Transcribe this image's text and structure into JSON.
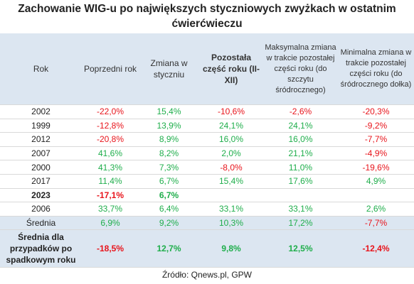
{
  "title": "Zachowanie WIG-u po największych styczniowych zwyżkach w ostatnim ćwierćwieczu",
  "table": {
    "header": [
      "Rok",
      "Poprzedni rok",
      "Zmiana w styczniu",
      "Pozostała część roku (II-XII)",
      "Maksymalna zmiana w trakcie pozostałej części roku (do szczytu śródrocznego)",
      "Minimalna zmiana w trakcie pozostałej części roku (do śródrocznego dołka)"
    ],
    "header_bold": [
      false,
      false,
      false,
      true,
      false,
      false
    ],
    "rows": [
      {
        "cells": [
          "2002",
          "-22,0%",
          "15,4%",
          "-10,6%",
          "-2,6%",
          "-20,3%"
        ],
        "bold": false
      },
      {
        "cells": [
          "1999",
          "-12,8%",
          "13,9%",
          "24,1%",
          "24,1%",
          "-9,2%"
        ],
        "bold": false
      },
      {
        "cells": [
          "2012",
          "-20,8%",
          "8,9%",
          "16,0%",
          "16,0%",
          "-7,7%"
        ],
        "bold": false
      },
      {
        "cells": [
          "2007",
          "41,6%",
          "8,2%",
          "2,0%",
          "21,1%",
          "-4,9%"
        ],
        "bold": false
      },
      {
        "cells": [
          "2000",
          "41,3%",
          "7,3%",
          "-8,0%",
          "11,0%",
          "-19,6%"
        ],
        "bold": false
      },
      {
        "cells": [
          "2017",
          "11,4%",
          "6,7%",
          "15,4%",
          "17,6%",
          "4,9%"
        ],
        "bold": false
      },
      {
        "cells": [
          "2023",
          "-17,1%",
          "6,7%"
        ],
        "bold": true
      },
      {
        "cells": [
          "2006",
          "33,7%",
          "6,4%",
          "33,1%",
          "33,1%",
          "2,6%"
        ],
        "bold": false
      }
    ],
    "summary": [
      {
        "cells": [
          "Średnia",
          "6,9%",
          "9,2%",
          "10,3%",
          "17,2%",
          "-7,7%"
        ],
        "bold": false
      },
      {
        "cells": [
          "Średnia dla przypadków po spadkowym roku",
          "-18,5%",
          "12,7%",
          "9,8%",
          "12,5%",
          "-12,4%"
        ],
        "bold": true
      }
    ]
  },
  "source": "Źródło: Qnews.pl, GPW"
}
